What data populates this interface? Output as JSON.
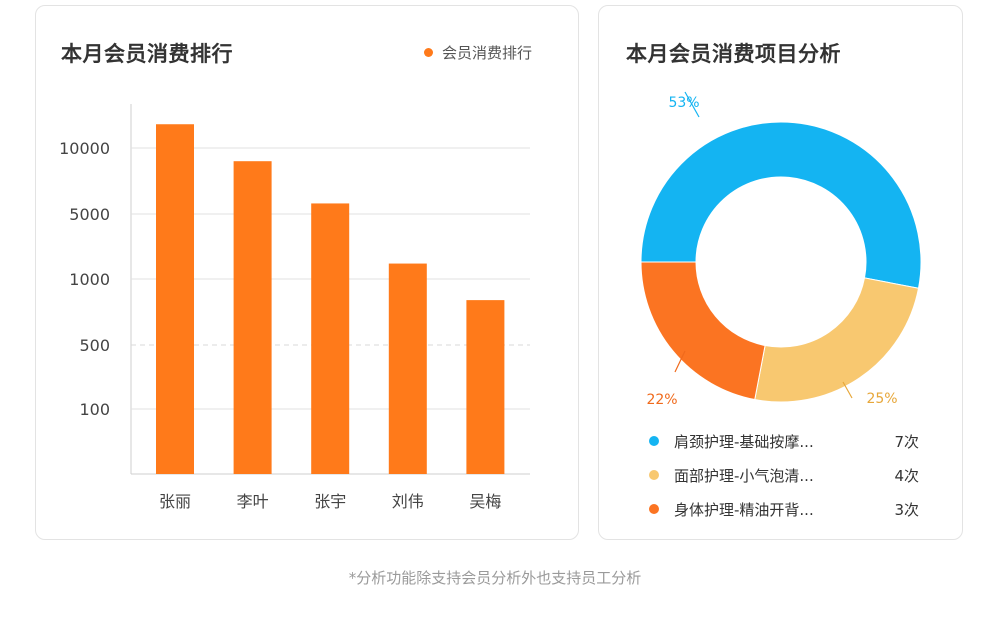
{
  "bar_panel": {
    "title": "本月会员消费排行",
    "legend_label": "会员消费排行",
    "legend_color": "#ff7a1a"
  },
  "donut_panel": {
    "title": "本月会员消费项目分析",
    "items": [
      {
        "label": "肩颈护理-基础按摩...",
        "count": "7次",
        "color": "#14b4f2"
      },
      {
        "label": "面部护理-小气泡清...",
        "count": "4次",
        "color": "#f8c870"
      },
      {
        "label": "身体护理-精油开背...",
        "count": "3次",
        "color": "#fb7422"
      }
    ]
  },
  "footnote": "*分析功能除支持会员分析外也支持员工分析",
  "chart_data": [
    {
      "type": "bar",
      "title": "本月会员消费排行",
      "categories": [
        "张丽",
        "李叶",
        "张宇",
        "刘伟",
        "吴梅"
      ],
      "series": [
        {
          "name": "会员消费排行",
          "values": [
            11800,
            9000,
            5800,
            1950,
            840
          ]
        }
      ],
      "y_ticks": [
        "100",
        "500",
        "1000",
        "5000",
        "10000"
      ],
      "y_tick_values": [
        100,
        500,
        1000,
        5000,
        10000
      ],
      "scale": "categorical-tick",
      "grid": true,
      "legend": "top-right",
      "bar_color": "#ff7a1a"
    },
    {
      "type": "pie",
      "title": "本月会员消费项目分析",
      "donut": true,
      "slices": [
        {
          "label": "肩颈护理-基础按摩...",
          "value": 53,
          "pct_label": "53%",
          "color": "#14b4f2",
          "label_color": "#14b4f2"
        },
        {
          "label": "面部护理-小气泡清...",
          "value": 25,
          "pct_label": "25%",
          "color": "#f8c870",
          "label_color": "#e7a73a"
        },
        {
          "label": "身体护理-精油开背...",
          "value": 22,
          "pct_label": "22%",
          "color": "#fb7422",
          "label_color": "#f06a1c"
        }
      ]
    }
  ]
}
